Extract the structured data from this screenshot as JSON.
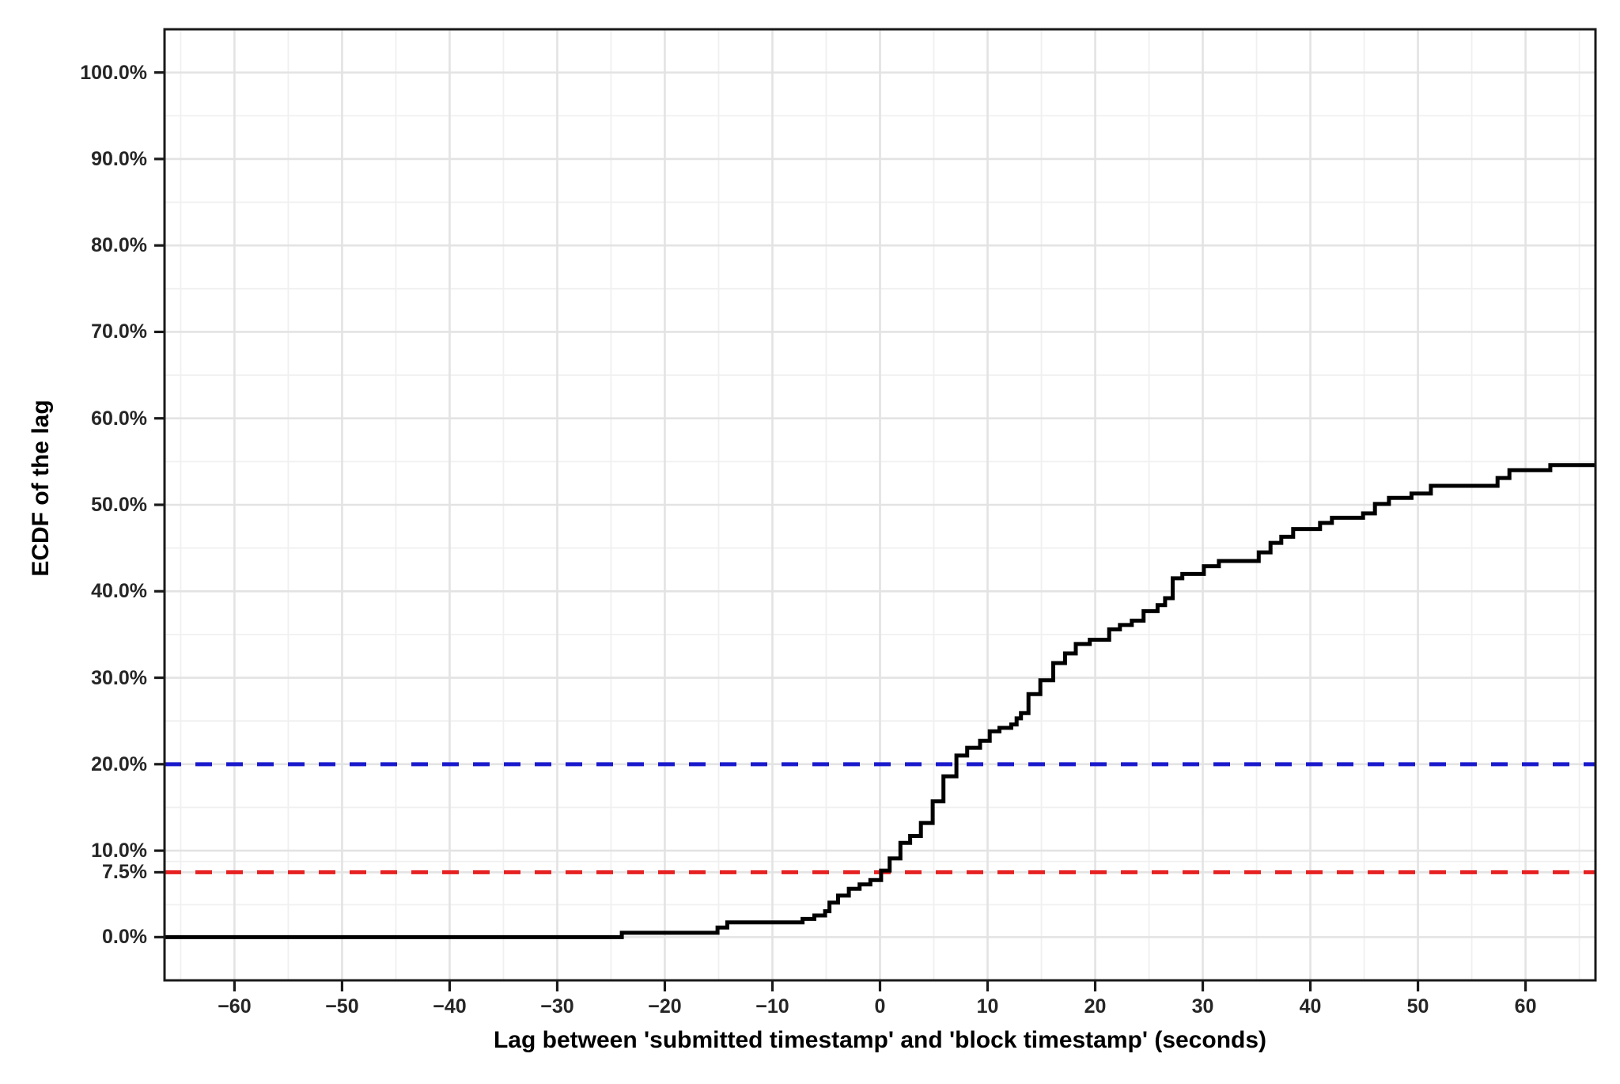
{
  "figure": {
    "kind": "ggplot-style ECDF step chart",
    "background": "#ffffff"
  },
  "colors": {
    "ecdf_line": "#000000",
    "hline_blue": "#1A1ACC",
    "hline_red": "#E62020",
    "grid_major": "#E3E3E3",
    "grid_minor": "#F0F0F0",
    "panel_border": "#1A1A1A",
    "tick_mark": "#1A1A1A",
    "axis_text": "#262626",
    "axis_title": "#000000"
  },
  "chart_data": {
    "type": "line",
    "subtype": "ecdf-step",
    "title": "",
    "xlabel": "Lag between 'submitted timestamp' and 'block timestamp' (seconds)",
    "ylabel": "ECDF of the lag",
    "xlim": [
      -66.5,
      66.5
    ],
    "ylim": [
      -5,
      105
    ],
    "grid": "major+minor",
    "legend": "none",
    "x_major_ticks": [
      -60,
      -50,
      -40,
      -30,
      -20,
      -10,
      0,
      10,
      20,
      30,
      40,
      50,
      60
    ],
    "x_tick_labels": [
      "−60",
      "−50",
      "−40",
      "−30",
      "−20",
      "−10",
      "0",
      "10",
      "20",
      "30",
      "40",
      "50",
      "60"
    ],
    "x_minor_ticks": [
      -65,
      -55,
      -45,
      -35,
      -25,
      -15,
      -5,
      5,
      15,
      25,
      35,
      45,
      55,
      65
    ],
    "y_major_ticks": [
      0,
      7.5,
      10,
      20,
      30,
      40,
      50,
      60,
      70,
      80,
      90,
      100
    ],
    "y_tick_labels": [
      "0.0%",
      "7.5%",
      "10.0%",
      "20.0%",
      "30.0%",
      "40.0%",
      "50.0%",
      "60.0%",
      "70.0%",
      "80.0%",
      "90.0%",
      "100.0%"
    ],
    "y_minor_ticks": [
      3.75,
      8.75,
      15,
      25,
      35,
      45,
      55,
      65,
      75,
      85,
      95
    ],
    "reference_lines": [
      {
        "name": "blue-dashed-hline",
        "y": 20,
        "value_label": "20.0%",
        "color": "#1A1ACC",
        "style": "dashed"
      },
      {
        "name": "red-dashed-hline",
        "y": 7.5,
        "value_label": "7.5%",
        "color": "#E62020",
        "style": "dashed"
      }
    ],
    "series": [
      {
        "name": "ECDF of the lag",
        "type": "step",
        "color": "#000000",
        "points": [
          [
            -66.5,
            0.0
          ],
          [
            -24.0,
            0.5
          ],
          [
            -15.1,
            1.1
          ],
          [
            -14.2,
            1.7
          ],
          [
            -7.2,
            2.1
          ],
          [
            -6.1,
            2.5
          ],
          [
            -5.1,
            3.0
          ],
          [
            -4.7,
            4.0
          ],
          [
            -3.9,
            4.8
          ],
          [
            -2.9,
            5.6
          ],
          [
            -1.9,
            6.1
          ],
          [
            -0.9,
            6.6
          ],
          [
            0.1,
            7.7
          ],
          [
            0.9,
            9.1
          ],
          [
            1.9,
            10.9
          ],
          [
            2.8,
            11.7
          ],
          [
            3.8,
            13.2
          ],
          [
            4.9,
            15.7
          ],
          [
            5.9,
            18.6
          ],
          [
            7.1,
            21.0
          ],
          [
            8.1,
            21.9
          ],
          [
            9.3,
            22.7
          ],
          [
            10.2,
            23.8
          ],
          [
            11.1,
            24.2
          ],
          [
            12.2,
            24.6
          ],
          [
            12.7,
            25.3
          ],
          [
            13.1,
            25.9
          ],
          [
            13.8,
            28.1
          ],
          [
            14.9,
            29.7
          ],
          [
            16.1,
            31.7
          ],
          [
            17.2,
            32.8
          ],
          [
            18.2,
            33.9
          ],
          [
            19.5,
            34.4
          ],
          [
            21.3,
            35.6
          ],
          [
            22.3,
            36.1
          ],
          [
            23.4,
            36.6
          ],
          [
            24.5,
            37.7
          ],
          [
            25.8,
            38.4
          ],
          [
            26.5,
            39.2
          ],
          [
            27.2,
            41.5
          ],
          [
            28.1,
            42.0
          ],
          [
            30.1,
            42.9
          ],
          [
            31.5,
            43.5
          ],
          [
            35.2,
            44.5
          ],
          [
            36.3,
            45.6
          ],
          [
            37.3,
            46.3
          ],
          [
            38.4,
            47.2
          ],
          [
            40.9,
            47.9
          ],
          [
            42.0,
            48.5
          ],
          [
            44.9,
            49.0
          ],
          [
            46.0,
            50.1
          ],
          [
            47.3,
            50.8
          ],
          [
            49.4,
            51.3
          ],
          [
            51.2,
            52.2
          ],
          [
            57.4,
            53.1
          ],
          [
            58.5,
            54.0
          ],
          [
            62.3,
            54.6
          ]
        ]
      }
    ]
  }
}
